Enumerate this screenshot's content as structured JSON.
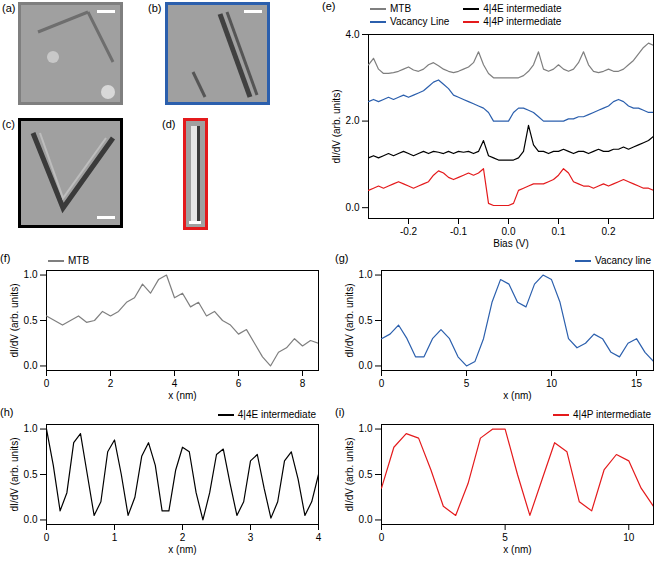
{
  "chart_data": [
    {
      "type": "image",
      "panel": "(a)",
      "color": "#7f7f7f"
    },
    {
      "type": "image",
      "panel": "(b)",
      "color": "#2b5fad"
    },
    {
      "type": "image",
      "panel": "(c)",
      "color": "#000000"
    },
    {
      "type": "image",
      "panel": "(d)",
      "color": "#e41a1c"
    },
    {
      "type": "line",
      "panel": "(e)",
      "x_label": "Bias (V)",
      "y_label": "dI/dV (arb. units)",
      "legend": "top left",
      "xlim": [
        -0.28,
        0.29
      ],
      "ylim": [
        -0.25,
        4.0
      ],
      "xticks": [
        -0.2,
        -0.1,
        {
          "value": 0,
          "label": "0.0"
        },
        0.1,
        0.2
      ],
      "yticks": [
        {
          "value": 0,
          "label": "0.0"
        },
        {
          "value": 2,
          "label": "2.0"
        },
        {
          "value": 4,
          "label": "4.0"
        }
      ],
      "x": [
        -0.28,
        -0.27,
        -0.26,
        -0.25,
        -0.24,
        -0.23,
        -0.22,
        -0.21,
        -0.2,
        -0.19,
        -0.18,
        -0.17,
        -0.16,
        -0.15,
        -0.14,
        -0.13,
        -0.12,
        -0.11,
        -0.1,
        -0.09,
        -0.08,
        -0.07,
        -0.06,
        -0.05,
        -0.04,
        -0.03,
        -0.02,
        -0.01,
        0,
        0.01,
        0.02,
        0.03,
        0.04,
        0.05,
        0.06,
        0.07,
        0.08,
        0.09,
        0.1,
        0.11,
        0.12,
        0.13,
        0.14,
        0.15,
        0.16,
        0.17,
        0.18,
        0.19,
        0.2,
        0.21,
        0.22,
        0.23,
        0.24,
        0.25,
        0.26,
        0.27,
        0.28,
        0.29
      ],
      "series": [
        {
          "name": "MTB",
          "color": "#7f7f7f",
          "values": [
            3.3,
            3.45,
            3.2,
            3.1,
            3.1,
            3.12,
            3.15,
            3.2,
            3.25,
            3.18,
            3.15,
            3.2,
            3.3,
            3.35,
            3.28,
            3.2,
            3.15,
            3.12,
            3.15,
            3.2,
            3.25,
            3.35,
            3.6,
            3.3,
            3.1,
            3.0,
            3.0,
            3.0,
            3.0,
            3.0,
            3.0,
            3.05,
            3.15,
            3.3,
            3.6,
            3.2,
            3.15,
            3.2,
            3.3,
            3.2,
            3.15,
            3.2,
            3.35,
            3.6,
            3.3,
            3.15,
            3.12,
            3.15,
            3.2,
            3.15,
            3.15,
            3.2,
            3.3,
            3.4,
            3.55,
            3.7,
            3.8,
            3.75
          ]
        },
        {
          "name": "Vacancy Line",
          "color": "#2b5fad",
          "values": [
            2.45,
            2.5,
            2.45,
            2.5,
            2.55,
            2.5,
            2.55,
            2.6,
            2.55,
            2.6,
            2.65,
            2.7,
            2.8,
            2.9,
            2.95,
            2.85,
            2.75,
            2.6,
            2.55,
            2.5,
            2.45,
            2.4,
            2.35,
            2.3,
            2.2,
            2.0,
            2.0,
            2.0,
            2.0,
            2.2,
            2.3,
            2.3,
            2.25,
            2.2,
            2.1,
            2.0,
            2.0,
            2.0,
            2.0,
            2.0,
            2.05,
            2.05,
            2.1,
            2.1,
            2.15,
            2.2,
            2.25,
            2.3,
            2.35,
            2.45,
            2.5,
            2.45,
            2.35,
            2.3,
            2.3,
            2.25,
            2.2,
            2.2
          ]
        },
        {
          "name": "4|4E intermediate",
          "color": "#000000",
          "values": [
            1.15,
            1.2,
            1.15,
            1.2,
            1.25,
            1.2,
            1.25,
            1.3,
            1.25,
            1.2,
            1.25,
            1.3,
            1.25,
            1.3,
            1.28,
            1.25,
            1.3,
            1.25,
            1.3,
            1.28,
            1.3,
            1.25,
            1.3,
            1.55,
            1.2,
            1.15,
            1.1,
            1.1,
            1.1,
            1.1,
            1.15,
            1.3,
            1.9,
            1.45,
            1.3,
            1.3,
            1.25,
            1.3,
            1.3,
            1.35,
            1.3,
            1.25,
            1.3,
            1.3,
            1.25,
            1.3,
            1.35,
            1.3,
            1.3,
            1.35,
            1.35,
            1.4,
            1.35,
            1.4,
            1.45,
            1.5,
            1.55,
            1.65
          ]
        },
        {
          "name": "4|4P intermediate",
          "color": "#e41a1c",
          "values": [
            0.4,
            0.45,
            0.5,
            0.45,
            0.5,
            0.55,
            0.6,
            0.55,
            0.5,
            0.45,
            0.5,
            0.55,
            0.6,
            0.75,
            0.85,
            0.8,
            0.7,
            0.65,
            0.7,
            0.75,
            0.8,
            0.75,
            0.8,
            0.9,
            0.1,
            0.05,
            0.05,
            0.05,
            0.05,
            0.1,
            0.4,
            0.45,
            0.5,
            0.55,
            0.55,
            0.55,
            0.6,
            0.65,
            0.75,
            0.9,
            0.8,
            0.6,
            0.55,
            0.5,
            0.5,
            0.45,
            0.5,
            0.55,
            0.5,
            0.55,
            0.6,
            0.65,
            0.6,
            0.55,
            0.5,
            0.45,
            0.45,
            0.4
          ]
        }
      ]
    },
    {
      "type": "line",
      "panel": "(f)",
      "x_label": "x (nm)",
      "y_label": "dI/dV (arb. units)",
      "legend": "top left",
      "xlim": [
        0,
        8.5
      ],
      "ylim": [
        -0.05,
        1.05
      ],
      "xticks": [
        0,
        2,
        4,
        6,
        8
      ],
      "yticks": [
        {
          "value": 0,
          "label": "0.0"
        },
        {
          "value": 0.5,
          "label": "0.5"
        },
        {
          "value": 1,
          "label": "1.0"
        }
      ],
      "x": [
        0,
        0.25,
        0.5,
        0.75,
        1,
        1.25,
        1.5,
        1.75,
        2,
        2.25,
        2.5,
        2.75,
        3,
        3.25,
        3.5,
        3.75,
        4,
        4.25,
        4.5,
        4.75,
        5,
        5.25,
        5.5,
        5.75,
        6,
        6.25,
        6.5,
        6.75,
        7,
        7.25,
        7.5,
        7.75,
        8,
        8.25,
        8.5
      ],
      "series": [
        {
          "name": "MTB",
          "color": "#7f7f7f",
          "values": [
            0.55,
            0.5,
            0.45,
            0.5,
            0.55,
            0.48,
            0.5,
            0.6,
            0.55,
            0.6,
            0.7,
            0.75,
            0.9,
            0.8,
            0.95,
            1.0,
            0.75,
            0.8,
            0.65,
            0.7,
            0.55,
            0.6,
            0.5,
            0.45,
            0.35,
            0.4,
            0.25,
            0.1,
            0.0,
            0.15,
            0.2,
            0.3,
            0.22,
            0.28,
            0.25
          ]
        }
      ]
    },
    {
      "type": "line",
      "panel": "(g)",
      "x_label": "x (nm)",
      "y_label": "dI/dV (arb. units)",
      "legend": "top right",
      "xlim": [
        0,
        16
      ],
      "ylim": [
        -0.05,
        1.05
      ],
      "xticks": [
        0,
        5,
        10,
        15
      ],
      "yticks": [
        {
          "value": 0,
          "label": "0.0"
        },
        {
          "value": 0.5,
          "label": "0.5"
        },
        {
          "value": 1,
          "label": "1.0"
        }
      ],
      "x": [
        0,
        0.5,
        1,
        1.5,
        2,
        2.5,
        3,
        3.5,
        4,
        4.5,
        5,
        5.5,
        6,
        6.5,
        7,
        7.5,
        8,
        8.5,
        9,
        9.5,
        10,
        10.5,
        11,
        11.5,
        12,
        12.5,
        13,
        13.5,
        14,
        14.5,
        15,
        15.5,
        16
      ],
      "series": [
        {
          "name": "Vacancy line",
          "color": "#2b5fad",
          "values": [
            0.3,
            0.35,
            0.45,
            0.3,
            0.1,
            0.1,
            0.3,
            0.4,
            0.3,
            0.1,
            0.0,
            0.05,
            0.3,
            0.7,
            0.95,
            0.9,
            0.7,
            0.65,
            0.9,
            1.0,
            0.95,
            0.7,
            0.3,
            0.2,
            0.25,
            0.35,
            0.3,
            0.15,
            0.1,
            0.25,
            0.3,
            0.15,
            0.05
          ]
        }
      ]
    },
    {
      "type": "line",
      "panel": "(h)",
      "x_label": "x (nm)",
      "y_label": "dI/dV (arb. units)",
      "legend": "top right",
      "xlim": [
        0,
        4
      ],
      "ylim": [
        -0.05,
        1.05
      ],
      "xticks": [
        0,
        1,
        2,
        3,
        4
      ],
      "yticks": [
        {
          "value": 0,
          "label": "0.0"
        },
        {
          "value": 0.5,
          "label": "0.5"
        },
        {
          "value": 1,
          "label": "1.0"
        }
      ],
      "x": [
        0,
        0.1,
        0.2,
        0.3,
        0.4,
        0.5,
        0.6,
        0.7,
        0.8,
        0.9,
        1,
        1.1,
        1.2,
        1.3,
        1.4,
        1.5,
        1.6,
        1.7,
        1.8,
        1.9,
        2,
        2.1,
        2.2,
        2.3,
        2.4,
        2.5,
        2.6,
        2.7,
        2.8,
        2.9,
        3,
        3.1,
        3.2,
        3.3,
        3.4,
        3.5,
        3.6,
        3.7,
        3.8,
        3.9,
        4
      ],
      "series": [
        {
          "name": "4|4E intermediate",
          "color": "#000000",
          "values": [
            1.0,
            0.6,
            0.1,
            0.3,
            0.85,
            0.95,
            0.5,
            0.05,
            0.2,
            0.75,
            0.88,
            0.5,
            0.05,
            0.25,
            0.7,
            0.85,
            0.6,
            0.1,
            0.1,
            0.55,
            0.8,
            0.75,
            0.3,
            0.0,
            0.3,
            0.72,
            0.78,
            0.4,
            0.05,
            0.2,
            0.65,
            0.72,
            0.35,
            0.02,
            0.2,
            0.65,
            0.75,
            0.45,
            0.05,
            0.2,
            0.5
          ]
        }
      ]
    },
    {
      "type": "line",
      "panel": "(i)",
      "x_label": "x (nm)",
      "y_label": "dI/dV (arb. units)",
      "legend": "top right",
      "xlim": [
        0,
        11
      ],
      "ylim": [
        -0.05,
        1.05
      ],
      "xticks": [
        0,
        5,
        10
      ],
      "yticks": [
        {
          "value": 0,
          "label": "0.0"
        },
        {
          "value": 0.5,
          "label": "0.5"
        },
        {
          "value": 1,
          "label": "1.0"
        }
      ],
      "x": [
        0,
        0.5,
        1,
        1.5,
        2,
        2.5,
        3,
        3.5,
        4,
        4.5,
        5,
        5.5,
        6,
        6.5,
        7,
        7.5,
        8,
        8.5,
        9,
        9.5,
        10,
        10.5,
        11
      ],
      "series": [
        {
          "name": "4|4P intermediate",
          "color": "#e41a1c",
          "values": [
            0.35,
            0.8,
            0.95,
            0.9,
            0.55,
            0.15,
            0.05,
            0.4,
            0.9,
            1.0,
            1.0,
            0.5,
            0.05,
            0.45,
            0.85,
            0.75,
            0.2,
            0.1,
            0.55,
            0.72,
            0.65,
            0.35,
            0.15
          ]
        }
      ]
    }
  ]
}
